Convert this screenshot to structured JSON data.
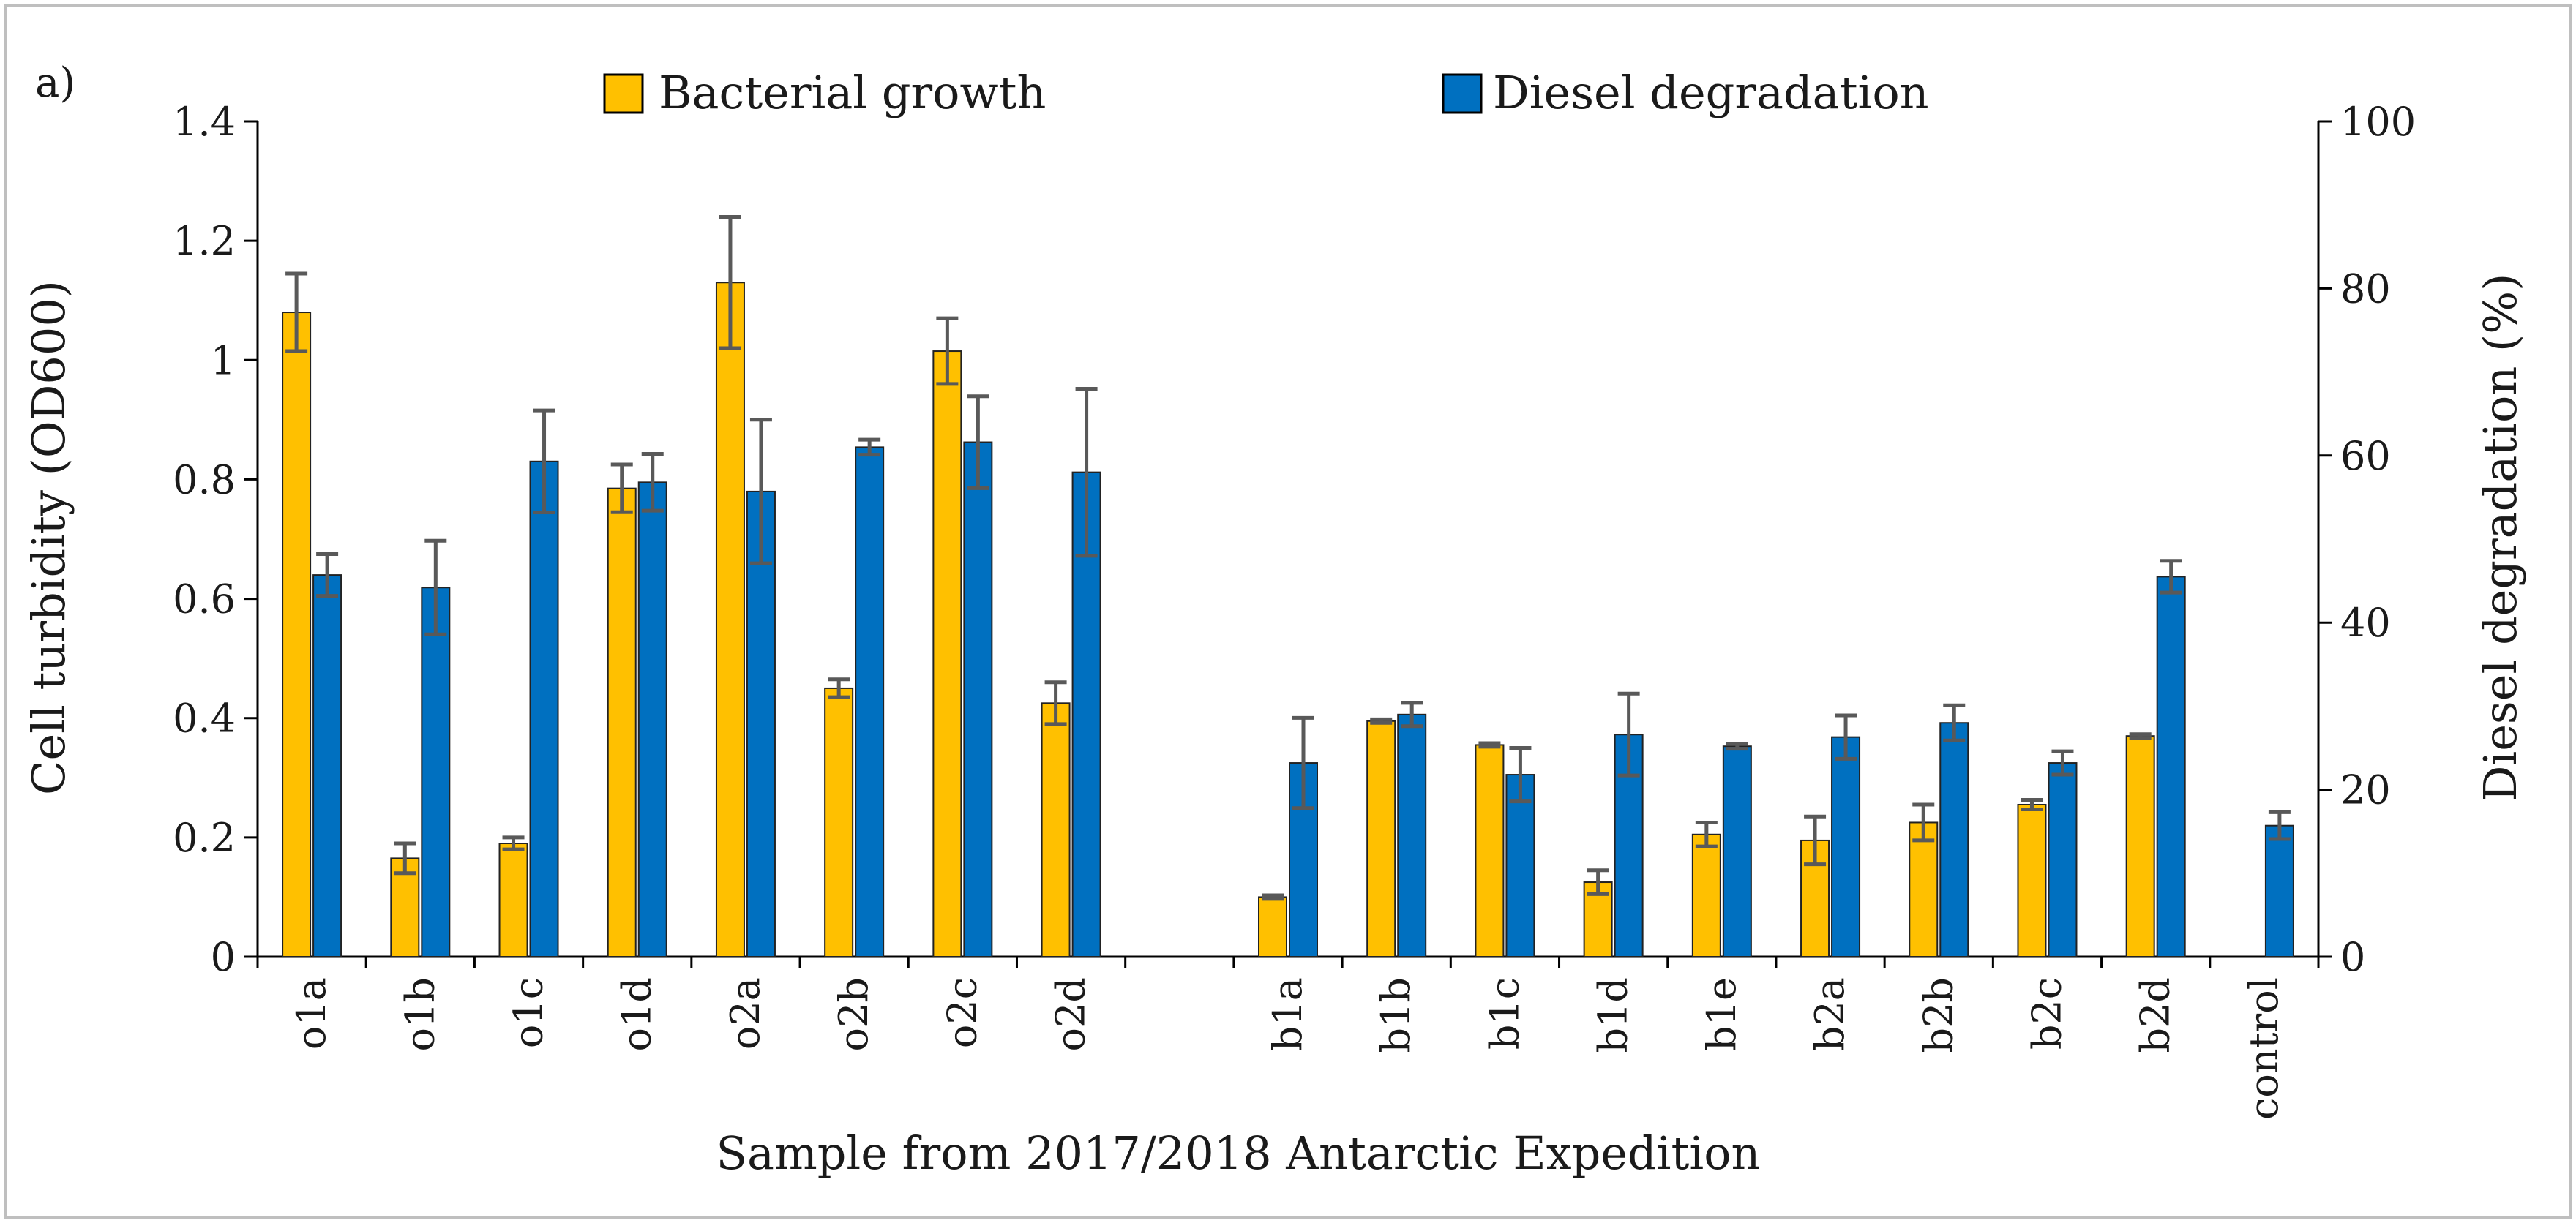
{
  "chart_data": {
    "type": "bar",
    "panel_label": "a)",
    "title": "",
    "xlabel": "Sample from 2017/2018 Antarctic Expedition",
    "ylabel": "Cell turbidity (OD600)",
    "y2label": "Diesel degradation (%)",
    "ylim": [
      0,
      1.4
    ],
    "y2lim": [
      0,
      100
    ],
    "yticks": [
      "0",
      "0.2",
      "0.4",
      "0.6",
      "0.8",
      "1",
      "1.2",
      "1.4"
    ],
    "y2ticks": [
      "0",
      "20",
      "40",
      "60",
      "80",
      "100"
    ],
    "categories": [
      "o1a",
      "o1b",
      "o1c",
      "o1d",
      "o2a",
      "o2b",
      "o2c",
      "o2d",
      "",
      "b1a",
      "b1b",
      "b1c",
      "b1d",
      "b1e",
      "b2a",
      "b2b",
      "b2c",
      "b2d",
      "control"
    ],
    "legend_position": "top",
    "grid": false,
    "series": [
      {
        "name": "Bacterial growth",
        "axis": "left",
        "color": "#FFC000",
        "values": [
          1.08,
          0.165,
          0.19,
          0.785,
          1.13,
          0.45,
          1.015,
          0.425,
          null,
          0.1,
          0.395,
          0.355,
          0.125,
          0.205,
          0.195,
          0.225,
          0.255,
          0.37,
          null
        ],
        "errors": [
          0.065,
          0.025,
          0.01,
          0.04,
          0.11,
          0.015,
          0.055,
          0.035,
          null,
          0.003,
          0.003,
          0.003,
          0.02,
          0.02,
          0.04,
          0.03,
          0.008,
          0.003,
          null
        ]
      },
      {
        "name": "Diesel degradation",
        "axis": "right",
        "color": "#0070C0",
        "values": [
          45.7,
          44.2,
          59.3,
          56.8,
          55.7,
          61.0,
          61.6,
          58.0,
          null,
          23.2,
          29.0,
          21.8,
          26.6,
          25.2,
          26.3,
          28.0,
          23.2,
          45.5,
          15.7
        ],
        "errors": [
          2.5,
          5.6,
          6.1,
          3.4,
          8.6,
          0.9,
          5.5,
          10.0,
          null,
          5.4,
          1.4,
          3.2,
          4.9,
          0.3,
          2.6,
          2.1,
          1.4,
          1.9,
          1.6
        ]
      }
    ]
  }
}
